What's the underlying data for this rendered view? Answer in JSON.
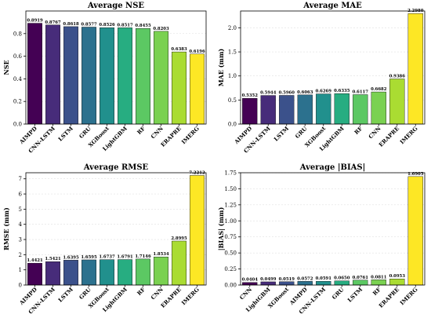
{
  "chart_data": [
    {
      "type": "bar",
      "title": "Average NSE",
      "xlabel": "",
      "ylabel": "NSE",
      "ylim": [
        0,
        1.0
      ],
      "yticks": [
        0.0,
        0.2,
        0.4,
        0.6,
        0.8
      ],
      "tick_decimals": 1,
      "grid": true,
      "categories": [
        "AIMPD",
        "CNN-LSTM",
        "LSTM",
        "GRU",
        "XGBoost",
        "LightGBM",
        "RF",
        "CNN",
        "ERAPRE",
        "IMERG"
      ],
      "values": [
        0.8919,
        0.8767,
        0.8618,
        0.8577,
        0.8526,
        0.8517,
        0.8455,
        0.8203,
        0.6383,
        0.6196
      ],
      "value_labels": [
        "0.8919",
        "0.8767",
        "0.8618",
        "0.8577",
        "0.8526",
        "0.8517",
        "0.8455",
        "0.8203",
        "0.6383",
        "0.6196"
      ],
      "colors": [
        "#440154",
        "#472c7a",
        "#3b518b",
        "#2c718e",
        "#21908d",
        "#27ad81",
        "#5cc863",
        "#7ad151",
        "#aadc32",
        "#fde725"
      ]
    },
    {
      "type": "bar",
      "title": "Average MAE",
      "xlabel": "",
      "ylabel": "MAE (mm)",
      "ylim": [
        0,
        2.35
      ],
      "yticks": [
        0.0,
        0.5,
        1.0,
        1.5,
        2.0
      ],
      "tick_decimals": 1,
      "grid": true,
      "categories": [
        "AIMPD",
        "CNN-LSTM",
        "LSTM",
        "GRU",
        "XGBoost",
        "LightGBM",
        "RF",
        "CNN",
        "ERAPRE",
        "IMERG"
      ],
      "values": [
        0.5352,
        0.5944,
        0.596,
        0.6063,
        0.6269,
        0.6335,
        0.6117,
        0.6682,
        0.9386,
        2.298
      ],
      "value_labels": [
        "0.5352",
        "0.5944",
        "0.5960",
        "0.6063",
        "0.6269",
        "0.6335",
        "0.6117",
        "0.6682",
        "0.9386",
        "2.2980"
      ],
      "colors": [
        "#440154",
        "#472c7a",
        "#3b518b",
        "#2c718e",
        "#21908d",
        "#27ad81",
        "#5cc863",
        "#7ad151",
        "#aadc32",
        "#fde725"
      ]
    },
    {
      "type": "bar",
      "title": "Average RMSE",
      "xlabel": "",
      "ylabel": "RMSE (mm)",
      "ylim": [
        0,
        7.4
      ],
      "yticks": [
        0,
        1,
        2,
        3,
        4,
        5,
        6,
        7
      ],
      "tick_decimals": 0,
      "grid": true,
      "categories": [
        "AIMPD",
        "CNN-LSTM",
        "LSTM",
        "GRU",
        "XGBoost",
        "LightGBM",
        "RF",
        "CNN",
        "ERAPRE",
        "IMERG"
      ],
      "values": [
        1.4421,
        1.5421,
        1.6395,
        1.6595,
        1.6737,
        1.6791,
        1.7146,
        1.8534,
        2.8995,
        7.2212
      ],
      "value_labels": [
        "1.4421",
        "1.5421",
        "1.6395",
        "1.6595",
        "1.6737",
        "1.6791",
        "1.7146",
        "1.8534",
        "2.8995",
        "7.2212"
      ],
      "colors": [
        "#440154",
        "#472c7a",
        "#3b518b",
        "#2c718e",
        "#21908d",
        "#27ad81",
        "#5cc863",
        "#7ad151",
        "#aadc32",
        "#fde725"
      ]
    },
    {
      "type": "bar",
      "title": "Average |BIAS|",
      "xlabel": "",
      "ylabel": "|BIAS| (mm)",
      "ylim": [
        0,
        1.75
      ],
      "yticks": [
        0.0,
        0.25,
        0.5,
        0.75,
        1.0,
        1.25,
        1.5,
        1.75
      ],
      "tick_decimals": 2,
      "grid": true,
      "categories": [
        "CNN",
        "LightGBM",
        "XGBoost",
        "AIMPD",
        "CNN-LSTM",
        "GRU",
        "LSTM",
        "RF",
        "ERAPRE",
        "IMERG"
      ],
      "values": [
        0.0404,
        0.0499,
        0.0519,
        0.0572,
        0.0591,
        0.065,
        0.0761,
        0.0811,
        0.0953,
        1.6905
      ],
      "value_labels": [
        "0.0404",
        "0.0499",
        "0.0519",
        "0.0572",
        "0.0591",
        "0.0650",
        "0.0761",
        "0.0811",
        "0.0953",
        "1.6905"
      ],
      "colors": [
        "#440154",
        "#472c7a",
        "#3b518b",
        "#2c718e",
        "#21908d",
        "#27ad81",
        "#5cc863",
        "#7ad151",
        "#aadc32",
        "#fde725"
      ]
    }
  ]
}
